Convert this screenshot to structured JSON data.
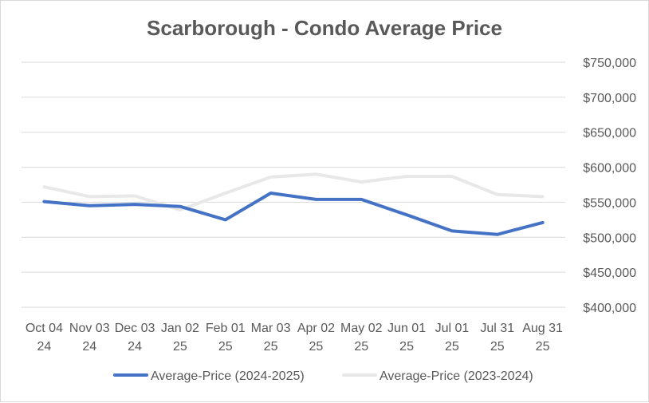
{
  "chart_data": {
    "type": "line",
    "title": "Scarborough - Condo Average Price",
    "xlabel": "",
    "ylabel": "",
    "ylim": [
      400000,
      750000
    ],
    "yticks": [
      400000,
      450000,
      500000,
      550000,
      600000,
      650000,
      700000,
      750000
    ],
    "y_axis_position": "right",
    "grid": true,
    "legend_position": "bottom",
    "categories": [
      [
        "Oct 04",
        "24"
      ],
      [
        "Nov 03",
        "24"
      ],
      [
        "Dec 03",
        "24"
      ],
      [
        "Jan 02",
        "25"
      ],
      [
        "Feb 01",
        "25"
      ],
      [
        "Mar 03",
        "25"
      ],
      [
        "Apr 02",
        "25"
      ],
      [
        "May 02",
        "25"
      ],
      [
        "Jun 01",
        "25"
      ],
      [
        "Jul 01",
        "25"
      ],
      [
        "Jul 31",
        "25"
      ],
      [
        "Aug 31",
        "25"
      ]
    ],
    "series": [
      {
        "name": "Average-Price (2024-2025)",
        "color": "#4472c4",
        "values": [
          551000,
          545000,
          547000,
          544000,
          525000,
          563000,
          554000,
          554000,
          532000,
          509000,
          504000,
          521000
        ]
      },
      {
        "name": "Average-Price (2023-2024)",
        "color": "#e8e8e8",
        "values": [
          572000,
          558000,
          559000,
          539000,
          563000,
          586000,
          590000,
          579000,
          587000,
          587000,
          561000,
          558000
        ]
      }
    ]
  }
}
